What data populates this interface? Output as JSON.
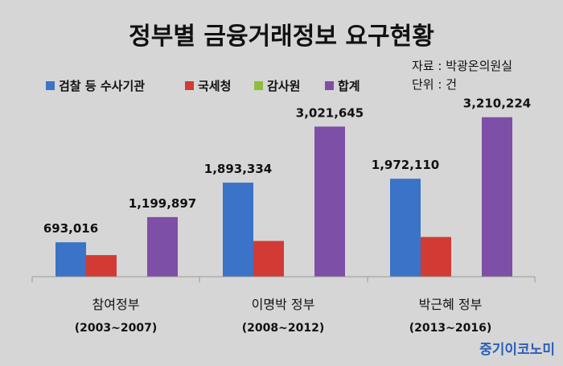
{
  "chart_data": {
    "type": "bar",
    "title": "정부별 금융거래정보 요구현황",
    "source": "자료 : 박광온의원실",
    "unit": "단위 : 건",
    "legend_position": "top-left",
    "categories": [
      "참여정부",
      "이명박 정부",
      "박근혜 정부"
    ],
    "periods": [
      "(2003~2007)",
      "(2008~2012)",
      "(2013~2016)"
    ],
    "series": [
      {
        "name": "검찰 등 수사기관",
        "color": "#3a73c8",
        "values": [
          693016,
          1893334,
          1972110
        ],
        "labels": [
          "693,016",
          "1,893,334",
          "1,972,110"
        ]
      },
      {
        "name": "국세청",
        "color": "#d23b34",
        "values": [
          435000,
          720000,
          800000
        ],
        "labels": [
          null,
          null,
          null
        ]
      },
      {
        "name": "감사원",
        "color": "#8bbf3a",
        "values": [
          0,
          0,
          0
        ],
        "labels": [
          null,
          null,
          null
        ]
      },
      {
        "name": "합계",
        "color": "#7e4fa6",
        "values": [
          1199897,
          3021645,
          3210224
        ],
        "labels": [
          "1,199,897",
          "3,021,645",
          "3,210,224"
        ]
      }
    ],
    "ylim": [
      0,
      3400000
    ],
    "grid": false
  },
  "branding": "중기이코노미"
}
